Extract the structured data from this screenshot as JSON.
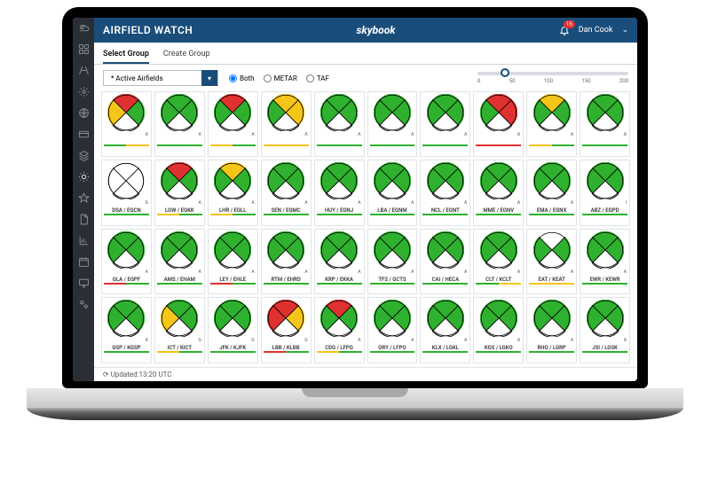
{
  "colors": {
    "header_bg": "#1a4d7a",
    "rail_bg": "#2a2e35",
    "green": "#2fb12f",
    "amber": "#f5c518",
    "red": "#e03131",
    "white": "#ffffff",
    "border": "#e0e3e8",
    "barGreen": "#2fb12f",
    "barAmber": "#f5c518",
    "barRed": "#e03131"
  },
  "header": {
    "title": "AIRFIELD WATCH",
    "logo": "skybook",
    "notification_count": "15",
    "user_name": "Dan Cook"
  },
  "tabs": {
    "select": "Select Group",
    "create": "Create Group",
    "active": "select"
  },
  "toolbar": {
    "dropdown_value": "* Active Airfields",
    "radio_both": "Both",
    "radio_metar": "METAR",
    "radio_taf": "TAF",
    "radio_selected": "both",
    "slider_ticks": [
      "0",
      "50",
      "100",
      "150",
      "200"
    ],
    "slider_pos_pct": 15
  },
  "status": {
    "text": "Updated:13:20 UTC"
  },
  "tiles": [
    {
      "label": "",
      "q": [
        "R",
        "G",
        "G",
        "A"
      ],
      "lbar": "G",
      "rbar": "A",
      "s": "A"
    },
    {
      "label": "",
      "q": [
        "G",
        "G",
        "G",
        "G"
      ],
      "lbar": "G",
      "rbar": "G",
      "s": "A"
    },
    {
      "label": "",
      "q": [
        "R",
        "G",
        "G",
        "G"
      ],
      "lbar": "A",
      "rbar": "G",
      "s": "A"
    },
    {
      "label": "",
      "q": [
        "A",
        "A",
        "G",
        "G"
      ],
      "lbar": "A",
      "rbar": "A",
      "s": "A"
    },
    {
      "label": "",
      "q": [
        "G",
        "G",
        "G",
        "G"
      ],
      "lbar": "G",
      "rbar": "G",
      "s": "A"
    },
    {
      "label": "",
      "q": [
        "G",
        "G",
        "G",
        "G"
      ],
      "lbar": "G",
      "rbar": "G",
      "s": "A"
    },
    {
      "label": "",
      "q": [
        "G",
        "G",
        "G",
        "G"
      ],
      "lbar": "G",
      "rbar": "G",
      "s": "A"
    },
    {
      "label": "",
      "q": [
        "R",
        "R",
        "G",
        "G"
      ],
      "lbar": "R",
      "rbar": "R",
      "s": "A"
    },
    {
      "label": "",
      "q": [
        "A",
        "G",
        "G",
        "G"
      ],
      "lbar": "A",
      "rbar": "G",
      "s": "A"
    },
    {
      "label": "",
      "q": [
        "G",
        "G",
        "G",
        "G"
      ],
      "lbar": "G",
      "rbar": "G",
      "s": "A"
    },
    {
      "label": "DSA / EGCN",
      "q": [
        "W",
        "W",
        "W",
        "W"
      ],
      "lbar": "G",
      "rbar": "G",
      "s": "G",
      "empty": true
    },
    {
      "label": "LGW / EGKK",
      "q": [
        "R",
        "G",
        "G",
        "G"
      ],
      "lbar": "A",
      "rbar": "G",
      "s": "A"
    },
    {
      "label": "LHR / EGLL",
      "q": [
        "A",
        "G",
        "G",
        "G"
      ],
      "lbar": "A",
      "rbar": "G",
      "s": "A"
    },
    {
      "label": "SEN / EGMC",
      "q": [
        "G",
        "G",
        "G",
        "G"
      ],
      "lbar": "G",
      "rbar": "G",
      "s": "A"
    },
    {
      "label": "HUY / EGNJ",
      "q": [
        "G",
        "G",
        "G",
        "G"
      ],
      "lbar": "G",
      "rbar": "G",
      "s": "A"
    },
    {
      "label": "LBA / EGNM",
      "q": [
        "G",
        "G",
        "G",
        "G"
      ],
      "lbar": "G",
      "rbar": "G",
      "s": "A"
    },
    {
      "label": "NCL / EGNT",
      "q": [
        "G",
        "G",
        "G",
        "G"
      ],
      "lbar": "G",
      "rbar": "G",
      "s": "A"
    },
    {
      "label": "MME / EGNV",
      "q": [
        "G",
        "G",
        "G",
        "G"
      ],
      "lbar": "G",
      "rbar": "G",
      "s": "A"
    },
    {
      "label": "EMA / EGNX",
      "q": [
        "G",
        "G",
        "G",
        "G"
      ],
      "lbar": "G",
      "rbar": "G",
      "s": "A"
    },
    {
      "label": "ABZ / EGPD",
      "q": [
        "G",
        "G",
        "G",
        "G"
      ],
      "lbar": "G",
      "rbar": "G",
      "s": "I"
    },
    {
      "label": "GLA / EGPF",
      "q": [
        "G",
        "G",
        "G",
        "G"
      ],
      "lbar": "R",
      "rbar": "G",
      "s": "A"
    },
    {
      "label": "AMS / EHAM",
      "q": [
        "G",
        "G",
        "G",
        "G"
      ],
      "lbar": "G",
      "rbar": "G",
      "s": "A"
    },
    {
      "label": "LEY / EHLE",
      "q": [
        "G",
        "G",
        "G",
        "G"
      ],
      "lbar": "R",
      "rbar": "G",
      "s": "A"
    },
    {
      "label": "RTM / EHRD",
      "q": [
        "G",
        "G",
        "G",
        "G"
      ],
      "lbar": "G",
      "rbar": "G",
      "s": "A"
    },
    {
      "label": "KRP / EKKA",
      "q": [
        "G",
        "G",
        "G",
        "G"
      ],
      "lbar": "G",
      "rbar": "G",
      "s": "A"
    },
    {
      "label": "TFS / GCTS",
      "q": [
        "G",
        "G",
        "G",
        "G"
      ],
      "lbar": "G",
      "rbar": "G",
      "s": "A"
    },
    {
      "label": "CAI / HECA",
      "q": [
        "G",
        "G",
        "G",
        "G"
      ],
      "lbar": "G",
      "rbar": "G",
      "s": "A"
    },
    {
      "label": "CLT / KCLT",
      "q": [
        "G",
        "G",
        "G",
        "G"
      ],
      "lbar": "G",
      "rbar": "A",
      "s": "A"
    },
    {
      "label": "EAT / KEAT",
      "q": [
        "W",
        "G",
        "G",
        "G"
      ],
      "lbar": "A",
      "rbar": "A",
      "s": "A"
    },
    {
      "label": "EWR / KEWR",
      "q": [
        "G",
        "G",
        "G",
        "G"
      ],
      "lbar": "G",
      "rbar": "G",
      "s": "A"
    },
    {
      "label": "GSP / KGSP",
      "q": [
        "G",
        "G",
        "G",
        "G"
      ],
      "lbar": "G",
      "rbar": "G",
      "s": "A"
    },
    {
      "label": "ICT / KICT",
      "q": [
        "G",
        "G",
        "A",
        "A"
      ],
      "lbar": "A",
      "rbar": "G",
      "s": "G"
    },
    {
      "label": "JFK / KJFK",
      "q": [
        "G",
        "G",
        "G",
        "G"
      ],
      "lbar": "G",
      "rbar": "G",
      "s": "G"
    },
    {
      "label": "LBB / KLBB",
      "q": [
        "R",
        "A",
        "G",
        "R"
      ],
      "lbar": "R",
      "rbar": "G",
      "s": "G"
    },
    {
      "label": "CDG / LFPG",
      "q": [
        "R",
        "G",
        "G",
        "G"
      ],
      "lbar": "A",
      "rbar": "G",
      "s": "A"
    },
    {
      "label": "ORY / LFPO",
      "q": [
        "G",
        "G",
        "G",
        "G"
      ],
      "lbar": "G",
      "rbar": "G",
      "s": "A"
    },
    {
      "label": "KLX / LGKL",
      "q": [
        "G",
        "G",
        "G",
        "G"
      ],
      "lbar": "G",
      "rbar": "G",
      "s": "A"
    },
    {
      "label": "KGS / LGKO",
      "q": [
        "G",
        "G",
        "G",
        "G"
      ],
      "lbar": "G",
      "rbar": "G",
      "s": "A"
    },
    {
      "label": "RHO / LGRP",
      "q": [
        "G",
        "G",
        "G",
        "G"
      ],
      "lbar": "G",
      "rbar": "G",
      "s": "A"
    },
    {
      "label": "JSI / LGSK",
      "q": [
        "G",
        "G",
        "G",
        "G"
      ],
      "lbar": "G",
      "rbar": "G",
      "s": "A"
    }
  ]
}
